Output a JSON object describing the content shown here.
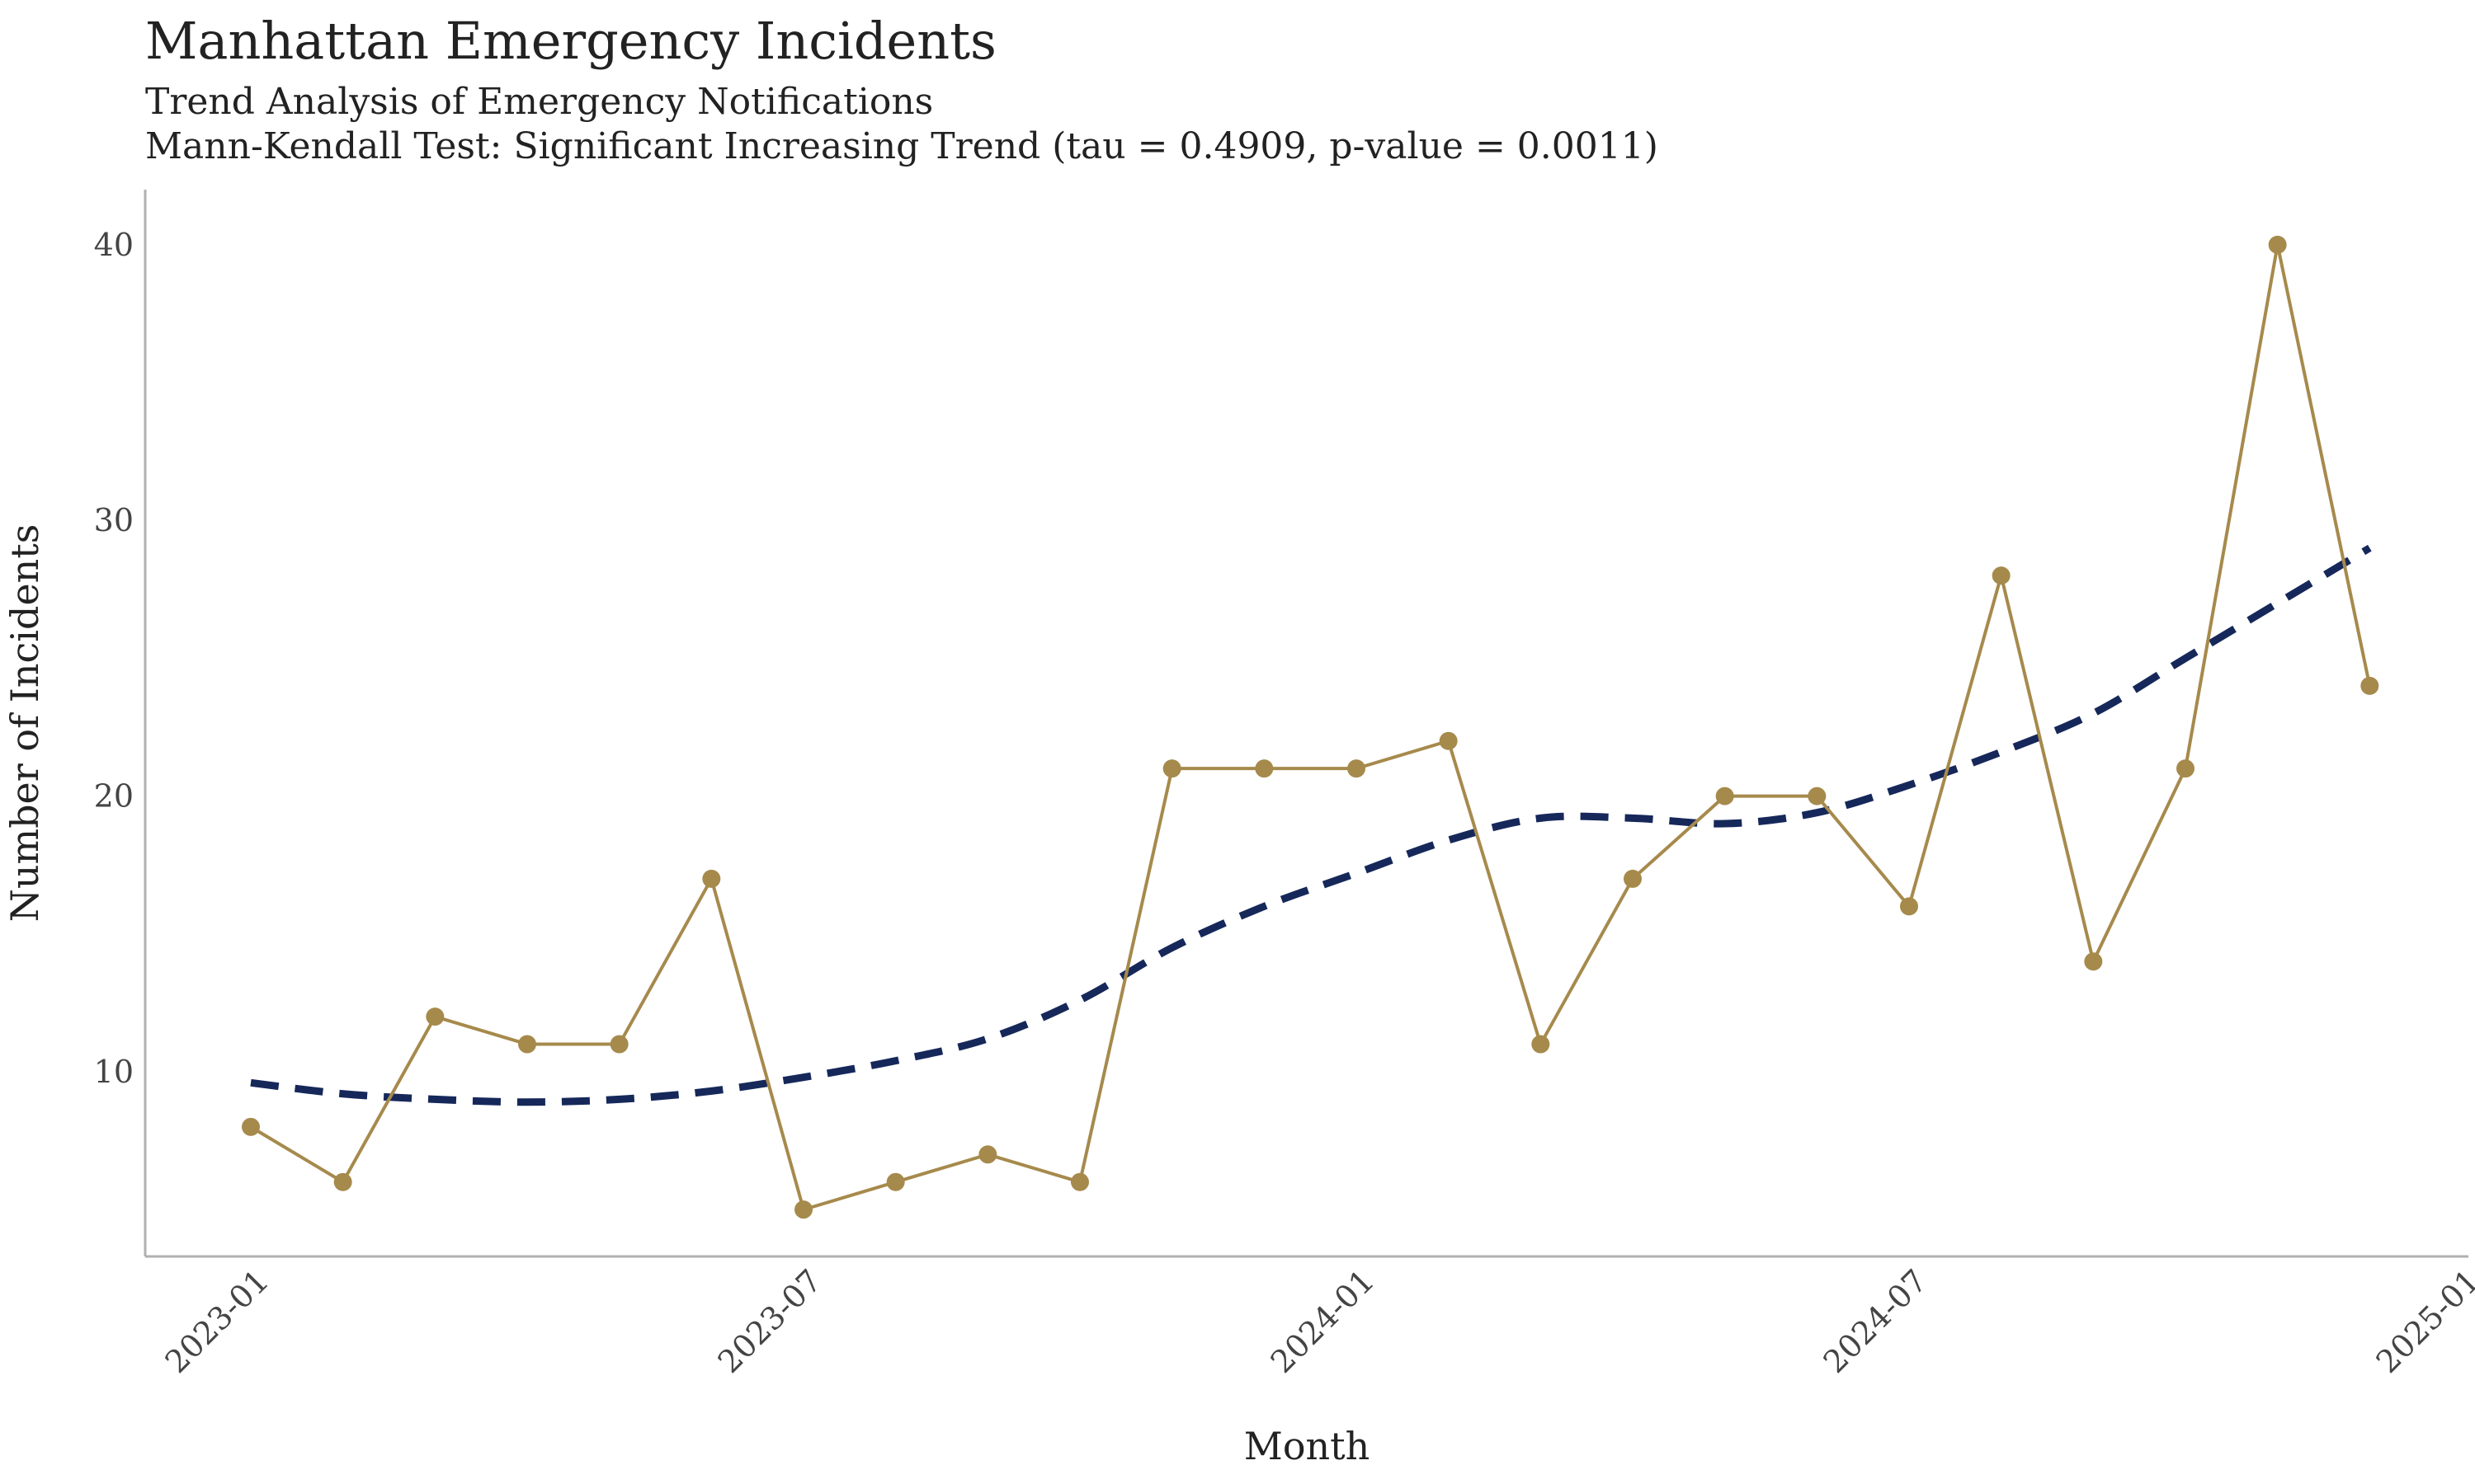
{
  "header": {
    "title": "Manhattan Emergency Incidents",
    "subtitle": "Trend Analysis of Emergency Notifications",
    "test_line": "Mann-Kendall Test: Significant Increasing Trend (tau = 0.4909, p-value = 0.0011)"
  },
  "colors": {
    "series": "#a68a4c",
    "trend": "#16285a",
    "axis": "#b0b0b0"
  },
  "chart_data": {
    "type": "line",
    "title": "Manhattan Emergency Incidents",
    "subtitle": "Trend Analysis of Emergency Notifications",
    "xlabel": "Month",
    "ylabel": "Number of Incidents",
    "x_ticks": [
      "2023-01",
      "2023-07",
      "2024-01",
      "2024-07",
      "2025-01"
    ],
    "y_ticks": [
      10,
      20,
      30,
      40
    ],
    "ylim": [
      3.3,
      42
    ],
    "grid": false,
    "x": [
      "2023-01",
      "2023-02",
      "2023-03",
      "2023-04",
      "2023-05",
      "2023-06",
      "2023-07",
      "2023-08",
      "2023-09",
      "2023-10",
      "2023-11",
      "2023-12",
      "2024-01",
      "2024-02",
      "2024-03",
      "2024-04",
      "2024-05",
      "2024-06",
      "2024-07",
      "2024-08",
      "2024-09",
      "2024-10",
      "2024-11",
      "2024-12"
    ],
    "series": [
      {
        "values": [
          8,
          6,
          12,
          11,
          11,
          17,
          5,
          6,
          7,
          6,
          21,
          21,
          21,
          22,
          11,
          17,
          20,
          20,
          16,
          28,
          14,
          21,
          40,
          24
        ]
      },
      {
        "style": "dashed",
        "values": [
          9.6,
          9.2,
          9.0,
          8.9,
          9.0,
          9.3,
          9.8,
          10.4,
          11.2,
          12.6,
          14.5,
          16.0,
          17.2,
          18.4,
          19.2,
          19.2,
          19.0,
          19.4,
          20.4,
          21.6,
          23.0,
          25.0,
          27.0,
          29.0
        ]
      }
    ]
  }
}
